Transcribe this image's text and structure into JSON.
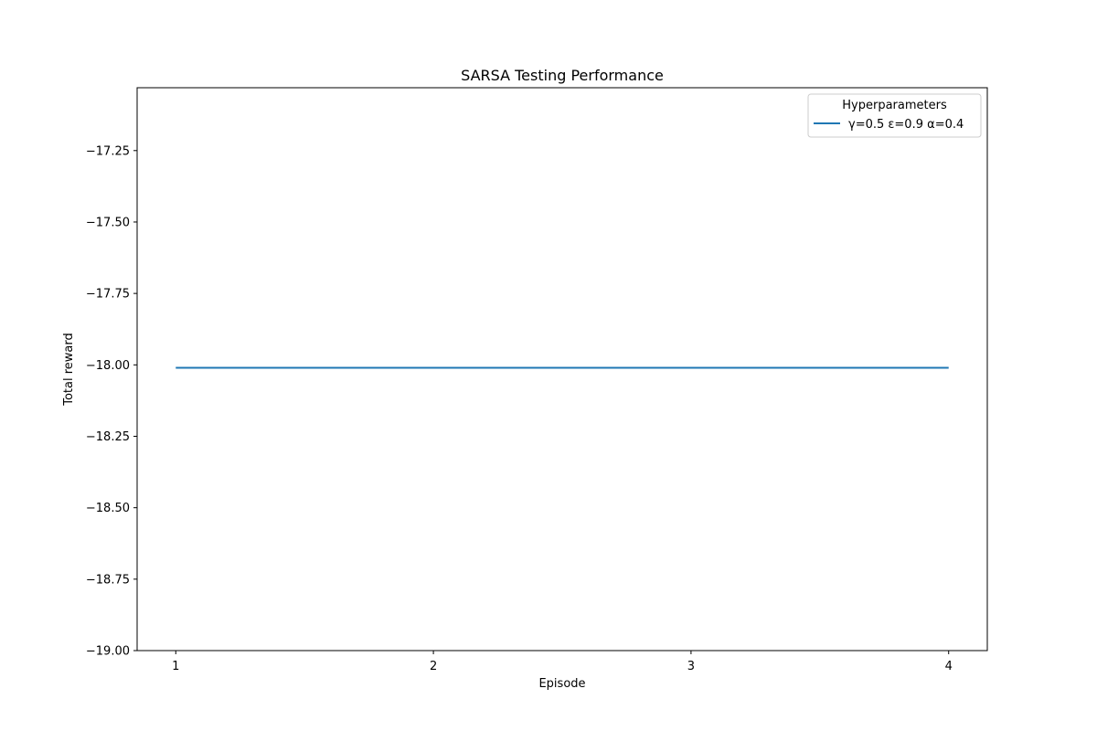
{
  "chart_data": {
    "type": "line",
    "title": "SARSA Testing Performance",
    "xlabel": "Episode",
    "ylabel": "Total reward",
    "x": [
      1,
      2,
      3,
      4
    ],
    "xticks": [
      1,
      2,
      3,
      4
    ],
    "xtick_labels": [
      "1",
      "2",
      "3",
      "4"
    ],
    "xlim": [
      0.85,
      4.15
    ],
    "yticks": [
      -19.0,
      -18.75,
      -18.5,
      -18.25,
      -18.0,
      -17.75,
      -17.5,
      -17.25
    ],
    "ytick_labels": [
      "−19.00",
      "−18.75",
      "−18.50",
      "−18.25",
      "−18.00",
      "−17.75",
      "−17.50",
      "−17.25"
    ],
    "ylim": [
      -19.0,
      -17.03
    ],
    "grid": false,
    "series": [
      {
        "name": "γ=0.5 ε=0.9 α=0.4",
        "values": [
          -18.01,
          -18.01,
          -18.01,
          -18.01
        ],
        "color": "#1f77b4"
      }
    ],
    "legend": {
      "title": "Hyperparameters",
      "placement": "top-right"
    }
  }
}
